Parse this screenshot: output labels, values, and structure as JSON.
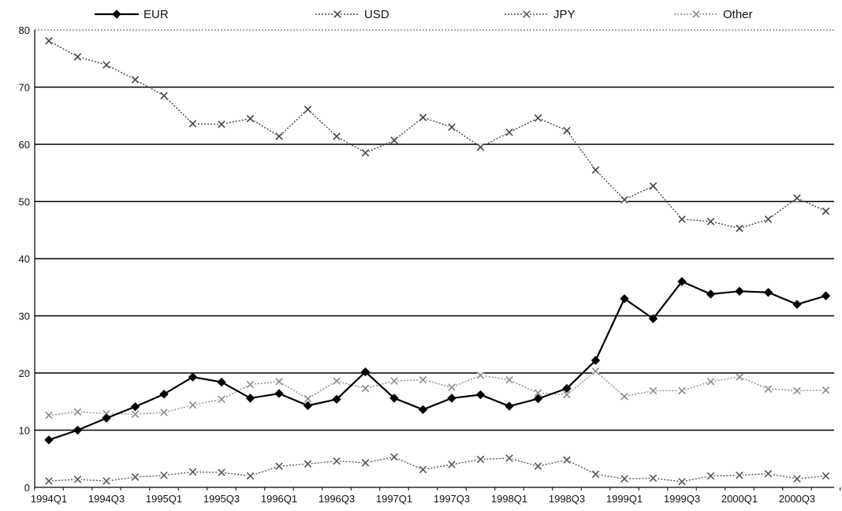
{
  "chart_data": {
    "type": "line",
    "title": "",
    "xlabel": "",
    "ylabel": "",
    "ylim": [
      0,
      80
    ],
    "y_ticks": [
      "0",
      "10",
      "20",
      "30",
      "40",
      "50",
      "60",
      "70",
      "80"
    ],
    "grid": "horizontal",
    "legend_position": "top",
    "categories": [
      "1994Q1",
      "1994Q2",
      "1994Q3",
      "1994Q4",
      "1995Q1",
      "1995Q2",
      "1995Q3",
      "1995Q4",
      "1996Q1",
      "1996Q2",
      "1996Q3",
      "1996Q4",
      "1997Q1",
      "1997Q2",
      "1997Q3",
      "1997Q4",
      "1998Q1",
      "1998Q2",
      "1998Q3",
      "1998Q4",
      "1999Q1",
      "1999Q2",
      "1999Q3",
      "1999Q4",
      "2000Q1",
      "2000Q2",
      "2000Q3",
      "2000Q4"
    ],
    "x_tick_labels": [
      "1994Q1",
      "1994Q3",
      "1995Q1",
      "1995Q3",
      "1996Q1",
      "1996Q3",
      "1997Q1",
      "1997Q3",
      "1998Q1",
      "1998Q3",
      "1999Q1",
      "1999Q3",
      "2000Q1",
      "2000Q3"
    ],
    "series": [
      {
        "name": "EUR",
        "color": "#000000",
        "marker": "diamond",
        "style": "solid",
        "values": [
          8.3,
          10.0,
          12.1,
          14.1,
          16.3,
          19.3,
          18.4,
          15.6,
          16.4,
          14.3,
          15.4,
          20.2,
          15.6,
          13.6,
          15.6,
          16.2,
          14.2,
          15.5,
          17.3,
          22.2,
          33.0,
          29.5,
          36.0,
          33.8,
          34.3,
          34.1,
          32.0,
          33.5
        ]
      },
      {
        "name": "USD",
        "color": "#444444",
        "marker": "x",
        "style": "dotted",
        "values": [
          78.1,
          75.3,
          73.9,
          71.3,
          68.5,
          63.6,
          63.5,
          64.5,
          61.4,
          66.1,
          61.4,
          58.5,
          60.7,
          64.7,
          63.0,
          59.5,
          62.1,
          64.6,
          62.4,
          55.5,
          50.3,
          52.7,
          46.9,
          46.5,
          45.3,
          46.9,
          50.6,
          48.3
        ]
      },
      {
        "name": "JPY",
        "color": "#555555",
        "marker": "x",
        "style": "dotted",
        "values": [
          1.1,
          1.4,
          1.1,
          1.8,
          2.1,
          2.7,
          2.6,
          2.0,
          3.7,
          4.1,
          4.6,
          4.3,
          5.3,
          3.1,
          4.0,
          4.9,
          5.1,
          3.7,
          4.8,
          2.3,
          1.5,
          1.6,
          1.0,
          2.0,
          2.1,
          2.4,
          1.5,
          2.0
        ]
      },
      {
        "name": "Other",
        "color": "#8a8a8a",
        "marker": "x",
        "style": "dotted",
        "values": [
          12.6,
          13.2,
          12.9,
          12.8,
          13.1,
          14.4,
          15.4,
          18.0,
          18.5,
          15.5,
          18.6,
          17.3,
          18.6,
          18.8,
          17.5,
          19.6,
          18.8,
          16.5,
          16.2,
          20.3,
          15.9,
          16.9,
          16.9,
          18.5,
          19.3,
          17.2,
          16.9,
          17.0
        ]
      }
    ]
  }
}
